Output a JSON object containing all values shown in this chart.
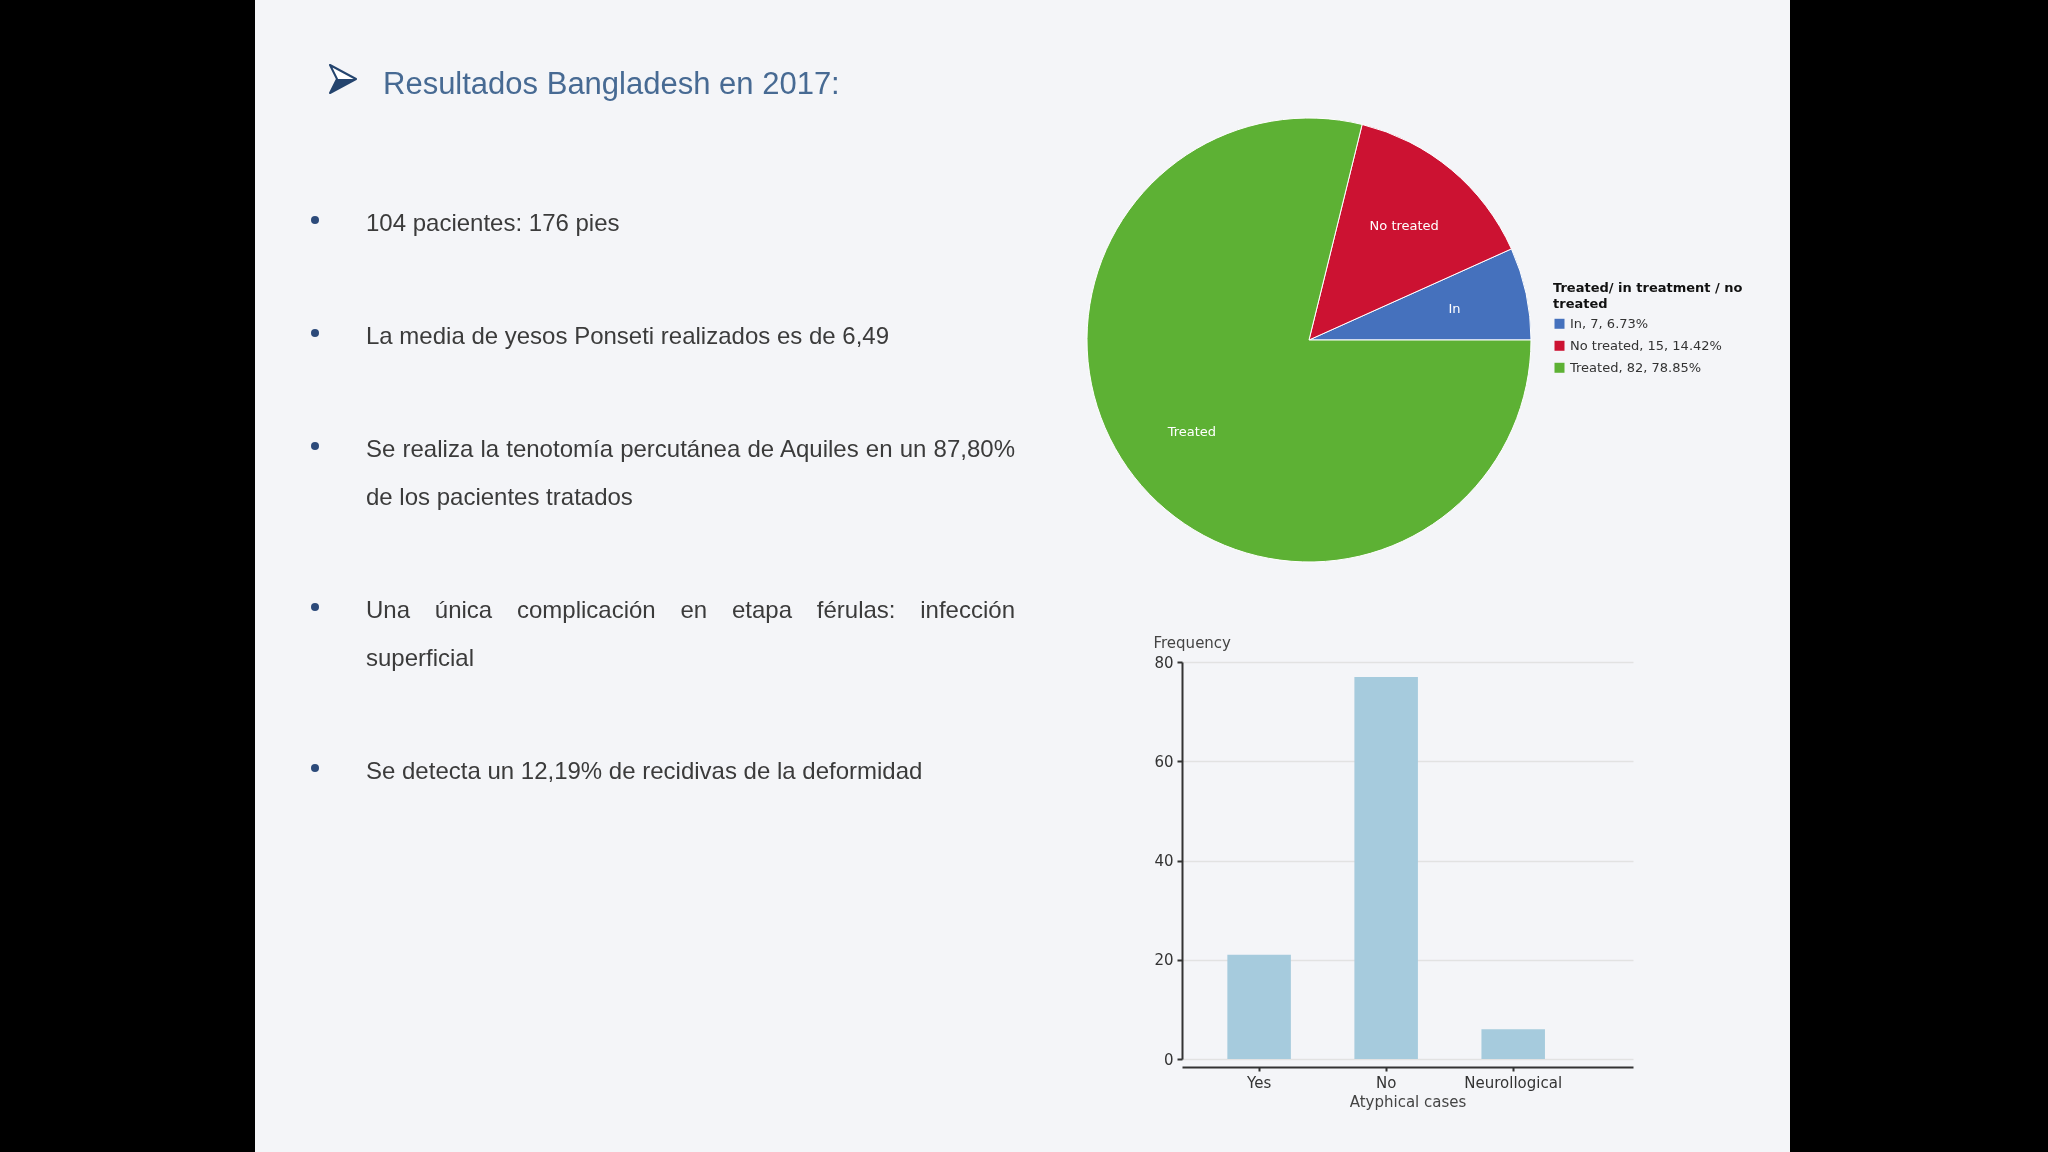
{
  "chart_data": [
    {
      "type": "other",
      "title": "Resultados Bangladesh en 2017:",
      "annotations": [
        "104 pacientes: 176 pies",
        "La media de yesos Ponseti realizados es de 6,49",
        "Se realiza la tenotomía percutánea de Aquiles en un 87,80% de los pacientes tratados",
        "Una única complicación en etapa férulas: infección superficial",
        "Se detecta un 12,19% de recidivas de la deformidad"
      ]
    },
    {
      "type": "pie",
      "categories": [
        "In, 7, 6.73%",
        "No treated, 15, 14.42%",
        "Treated, 82, 78.85%"
      ],
      "values": [
        7,
        15,
        82
      ],
      "colors": [
        "#4571bd",
        "#cc1232",
        "#5db134"
      ],
      "legend_title": "Treated/ in treatment / no treated",
      "value_labels": [
        "In",
        "No treated",
        "Treated"
      ],
      "legend": "right"
    },
    {
      "type": "bar",
      "categories": [
        "Yes",
        "No",
        "Neurollogical"
      ],
      "values": [
        21,
        77,
        6
      ],
      "color": "#a6cbdd",
      "xlabel": "Atyphical cases",
      "ylabel": "Frequency",
      "ylim": [
        0,
        80
      ],
      "yticks": [
        0,
        20,
        40,
        60,
        80
      ],
      "grid": "y"
    }
  ]
}
